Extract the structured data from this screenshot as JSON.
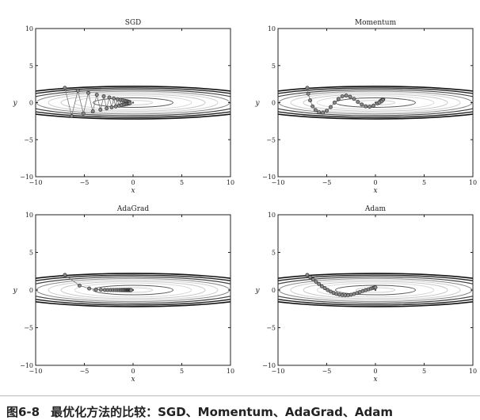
{
  "chart_data": [
    {
      "type": "line",
      "title": "SGD",
      "xlabel": "x",
      "ylabel": "y",
      "xlim": [
        -10,
        10
      ],
      "ylim": [
        -10,
        10
      ],
      "xticks": [
        "−10",
        "−5",
        "0",
        "5",
        "10"
      ],
      "yticks": [
        "10",
        "5",
        "0",
        "−5",
        "−10"
      ],
      "series": [
        {
          "x": [
            -7.0,
            -6.3,
            -5.67,
            -5.1,
            -4.59,
            -4.13,
            -3.72,
            -3.35,
            -3.01,
            -2.71,
            -2.44,
            -2.2,
            -1.98,
            -1.78,
            -1.6,
            -1.44,
            -1.3,
            -1.17,
            -1.05,
            -0.94,
            -0.85,
            -0.77,
            -0.69,
            -0.62,
            -0.56,
            -0.5,
            -0.45,
            -0.41,
            -0.37,
            -0.33
          ],
          "y": [
            2.0,
            -1.8,
            1.62,
            -1.46,
            1.31,
            -1.18,
            1.06,
            -0.96,
            0.86,
            -0.78,
            0.7,
            -0.63,
            0.57,
            -0.51,
            0.46,
            -0.41,
            0.37,
            -0.33,
            0.3,
            -0.27,
            0.24,
            -0.22,
            0.2,
            -0.18,
            0.16,
            -0.14,
            0.13,
            -0.12,
            0.1,
            -0.09
          ]
        }
      ]
    },
    {
      "type": "line",
      "title": "Momentum",
      "xlabel": "x",
      "ylabel": "y",
      "xlim": [
        -10,
        10
      ],
      "ylim": [
        -10,
        10
      ],
      "xticks": [
        "−10",
        "−5",
        "0",
        "5",
        "10"
      ],
      "yticks": [
        "10",
        "5",
        "0",
        "−5",
        "−10"
      ],
      "series": [
        {
          "x": [
            -7.0,
            -6.9,
            -6.7,
            -6.45,
            -6.15,
            -5.8,
            -5.4,
            -5.0,
            -4.6,
            -4.2,
            -3.8,
            -3.4,
            -3.0,
            -2.6,
            -2.2,
            -1.8,
            -1.4,
            -1.0,
            -0.6,
            -0.2,
            0.2,
            0.5,
            0.7,
            0.8,
            0.75,
            0.6,
            0.4
          ],
          "y": [
            2.0,
            1.2,
            0.3,
            -0.5,
            -1.0,
            -1.3,
            -1.35,
            -1.1,
            -0.6,
            0.0,
            0.5,
            0.85,
            0.95,
            0.8,
            0.5,
            0.1,
            -0.25,
            -0.5,
            -0.55,
            -0.4,
            -0.1,
            0.2,
            0.4,
            0.45,
            0.35,
            0.15,
            0.0
          ]
        }
      ]
    },
    {
      "type": "line",
      "title": "AdaGrad",
      "xlabel": "x",
      "ylabel": "y",
      "xlim": [
        -10,
        10
      ],
      "ylim": [
        -10,
        10
      ],
      "xticks": [
        "−10",
        "−5",
        "0",
        "5",
        "10"
      ],
      "yticks": [
        "10",
        "5",
        "0",
        "−5",
        "−10"
      ],
      "series": [
        {
          "x": [
            -7.0,
            -5.5,
            -4.5,
            -3.8,
            -3.3,
            -2.9,
            -2.6,
            -2.3,
            -2.05,
            -1.82,
            -1.62,
            -1.44,
            -1.28,
            -1.14,
            -1.01,
            -0.9,
            -0.8,
            -0.71,
            -0.63,
            -0.56,
            -0.5,
            -0.44,
            -0.39,
            -0.35,
            -0.31,
            -0.27,
            -0.24,
            -0.21
          ],
          "y": [
            2.0,
            0.6,
            0.2,
            0.07,
            0.03,
            0.01,
            0.0,
            0.0,
            0.0,
            0.0,
            0.0,
            0.0,
            0.0,
            0.0,
            0.0,
            0.0,
            0.0,
            0.0,
            0.0,
            0.0,
            0.0,
            0.0,
            0.0,
            0.0,
            0.0,
            0.0,
            0.0,
            0.0
          ]
        }
      ]
    },
    {
      "type": "line",
      "title": "Adam",
      "xlabel": "x",
      "ylabel": "y",
      "xlim": [
        -10,
        10
      ],
      "ylim": [
        -10,
        10
      ],
      "xticks": [
        "−10",
        "−5",
        "0",
        "5",
        "10"
      ],
      "yticks": [
        "10",
        "5",
        "0",
        "−5",
        "−10"
      ],
      "series": [
        {
          "x": [
            -7.0,
            -6.7,
            -6.4,
            -6.1,
            -5.8,
            -5.5,
            -5.2,
            -4.9,
            -4.6,
            -4.3,
            -4.0,
            -3.7,
            -3.4,
            -3.1,
            -2.8,
            -2.5,
            -2.2,
            -1.9,
            -1.6,
            -1.3,
            -1.0,
            -0.7,
            -0.45,
            -0.25,
            -0.1,
            0.0
          ],
          "y": [
            2.0,
            1.7,
            1.4,
            1.1,
            0.8,
            0.5,
            0.25,
            0.0,
            -0.2,
            -0.38,
            -0.52,
            -0.62,
            -0.68,
            -0.7,
            -0.68,
            -0.62,
            -0.52,
            -0.4,
            -0.27,
            -0.14,
            -0.02,
            0.1,
            0.2,
            0.28,
            0.33,
            0.35
          ]
        }
      ]
    }
  ],
  "caption": {
    "number": "图6-8",
    "text": "最优化方法的比较：SGD、Momentum、AdaGrad、Adam"
  }
}
